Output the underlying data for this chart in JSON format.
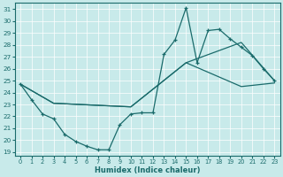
{
  "title": "",
  "xlabel": "Humidex (Indice chaleur)",
  "ylabel": "",
  "xlim": [
    -0.5,
    23.5
  ],
  "ylim": [
    18.7,
    31.5
  ],
  "yticks": [
    19,
    20,
    21,
    22,
    23,
    24,
    25,
    26,
    27,
    28,
    29,
    30,
    31
  ],
  "xticks": [
    0,
    1,
    2,
    3,
    4,
    5,
    6,
    7,
    8,
    9,
    10,
    11,
    12,
    13,
    14,
    15,
    16,
    17,
    18,
    19,
    20,
    21,
    22,
    23
  ],
  "bg_color": "#c8eaea",
  "line_color": "#1a6b6b",
  "line1_x": [
    0,
    1,
    2,
    3,
    4,
    5,
    6,
    7,
    8,
    9,
    10,
    11,
    12,
    13,
    14,
    15,
    16,
    17,
    18,
    19,
    20,
    21,
    22,
    23
  ],
  "line1_y": [
    24.7,
    23.4,
    22.2,
    21.8,
    20.5,
    19.9,
    19.5,
    19.2,
    19.2,
    21.3,
    22.2,
    22.3,
    22.3,
    27.2,
    28.4,
    31.1,
    26.5,
    29.2,
    29.3,
    28.5,
    27.8,
    27.1,
    26.0,
    25.0
  ],
  "line2_x": [
    0,
    3,
    10,
    15,
    20,
    23
  ],
  "line2_y": [
    24.7,
    23.1,
    22.8,
    26.5,
    28.2,
    25.0
  ],
  "line3_x": [
    0,
    3,
    10,
    15,
    20,
    23
  ],
  "line3_y": [
    24.7,
    23.1,
    22.8,
    26.5,
    24.5,
    24.8
  ]
}
